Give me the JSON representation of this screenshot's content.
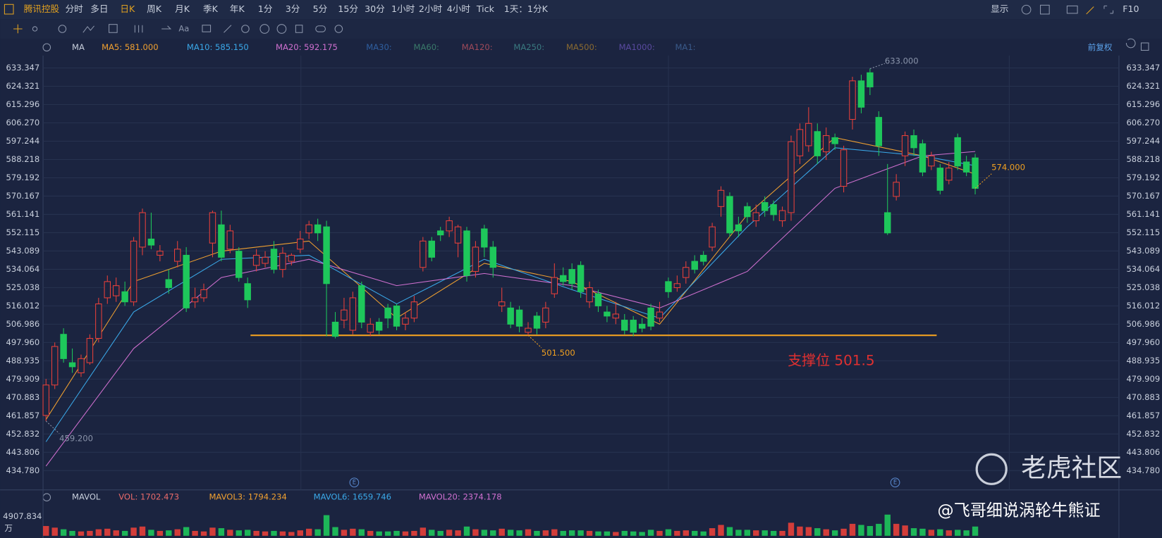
{
  "toolbar": [
    "腾讯控股",
    "分时",
    "多日",
    "日K",
    "周K",
    "月K",
    "季K",
    "年K",
    "1分",
    "3分",
    "5分",
    "15分",
    "30分",
    "1小时",
    "2小时",
    "4小时",
    "Tick",
    "1天：1分K",
    "显示",
    "F10"
  ],
  "draw_tools": [
    "Aa"
  ],
  "indicator_label": "MA",
  "inactive_ma": [
    {
      "name": "MA30:",
      "color": "#2f5fa0"
    },
    {
      "name": "MA60:",
      "color": "#3a7a6a"
    },
    {
      "name": "MA120:",
      "color": "#a04a5a"
    },
    {
      "name": "MA250:",
      "color": "#3a7a80"
    },
    {
      "name": "MA500:",
      "color": "#8a6a30"
    },
    {
      "name": "MA1000:",
      "color": "#5a4aa0"
    },
    {
      "name": "MA1:",
      "color": "#3a5a8a"
    }
  ],
  "adjust_label": "前复权",
  "event_markers": [
    "E",
    "E"
  ],
  "watermark": "老虎社区",
  "author": "@飞哥细说涡轮牛熊证",
  "chart_data": {
    "type": "candlestick",
    "up_color": "#e8403a",
    "down_color": "#1ec75b",
    "open": [
      462,
      477,
      502,
      488,
      483,
      488,
      500,
      520,
      521,
      523,
      518,
      545,
      549,
      541,
      529,
      538,
      541,
      518,
      520,
      547,
      556,
      544,
      543,
      527,
      536,
      537,
      544,
      534,
      538,
      544,
      552,
      556,
      555,
      508,
      509,
      504,
      526,
      503,
      508,
      515,
      516,
      507,
      510,
      535,
      548,
      553,
      553,
      547,
      553,
      533,
      554,
      545,
      516,
      515,
      514,
      503,
      511,
      508,
      522,
      531,
      534,
      536,
      518,
      522,
      513,
      510,
      509,
      509,
      507,
      515,
      510,
      528,
      525,
      530,
      538,
      541,
      545,
      565,
      570,
      556,
      565,
      558,
      567,
      566,
      558,
      562,
      590,
      595,
      602,
      592,
      599,
      575,
      608,
      627,
      631,
      609,
      562,
      570,
      590,
      600,
      596,
      585,
      584,
      578,
      599,
      587,
      589
    ],
    "high": [
      480,
      498,
      505,
      495,
      492,
      502,
      520,
      531,
      530,
      528,
      550,
      564,
      562,
      546,
      534,
      548,
      545,
      525,
      527,
      563,
      563,
      556,
      545,
      530,
      544,
      543,
      548,
      545,
      542,
      553,
      558,
      559,
      558,
      513,
      520,
      523,
      528,
      510,
      510,
      517,
      517,
      513,
      521,
      550,
      550,
      555,
      560,
      556,
      555,
      548,
      556,
      548,
      525,
      518,
      516,
      508,
      513,
      518,
      537,
      535,
      537,
      538,
      528,
      524,
      516,
      518,
      512,
      511,
      510,
      517,
      518,
      530,
      531,
      538,
      541,
      543,
      557,
      575,
      572,
      560,
      567,
      566,
      570,
      568,
      565,
      600,
      606,
      614,
      606,
      604,
      601,
      595,
      629,
      630,
      633,
      612,
      586,
      581,
      602,
      603,
      598,
      592,
      586,
      587,
      601,
      590,
      591
    ],
    "low": [
      459.2,
      475,
      488,
      483,
      481,
      487,
      498,
      517,
      518,
      516,
      516,
      541,
      544,
      538,
      522,
      535,
      513,
      515,
      518,
      540,
      538,
      542,
      528,
      515,
      533,
      535,
      532,
      530,
      536,
      542,
      549,
      548,
      501,
      500,
      505,
      502,
      505,
      501,
      502,
      505,
      504,
      504,
      508,
      533,
      538,
      548,
      550,
      540,
      528,
      530,
      540,
      530,
      513,
      505,
      503,
      501.5,
      502,
      505,
      520,
      526,
      524,
      520,
      515,
      513,
      508,
      507,
      502,
      501,
      503,
      504,
      508,
      520,
      523,
      527,
      532,
      536,
      543,
      560,
      550,
      550,
      557,
      555,
      560,
      558,
      555,
      558,
      586,
      592,
      586,
      588,
      593,
      572,
      603,
      611,
      620,
      590,
      551,
      568,
      585,
      590,
      580,
      583,
      571,
      576,
      583,
      580,
      571
    ],
    "close": [
      477,
      496,
      490,
      486,
      490,
      500,
      517,
      528,
      526,
      518,
      548,
      562,
      546,
      543,
      525,
      544,
      515,
      520,
      524,
      562,
      540,
      553,
      530,
      519,
      541,
      540,
      534,
      542,
      541,
      549,
      556,
      552,
      527,
      501,
      514,
      520,
      508,
      507,
      504,
      510,
      506,
      510,
      518,
      548,
      540,
      551,
      558,
      555,
      531,
      545,
      545,
      535,
      518,
      507,
      506,
      505,
      505,
      515,
      530,
      528,
      527,
      523,
      525,
      516,
      511,
      512,
      504,
      503,
      505,
      506,
      513,
      523,
      527,
      535,
      534,
      538,
      555,
      573,
      552,
      553,
      560,
      562,
      563,
      561,
      563,
      597,
      603,
      606,
      590,
      600,
      596,
      593,
      627,
      614,
      624,
      595,
      552,
      577,
      600,
      594,
      582,
      590,
      573,
      584,
      585,
      582,
      574
    ],
    "ylim": [
      426.0,
      639.5
    ],
    "yticks": [
      633.347,
      624.321,
      615.296,
      {
        "value": 606.27,
        "label": "606.270"
      },
      597.244,
      588.218,
      579.192,
      570.167,
      561.141,
      552.115,
      543.089,
      534.064,
      525.038,
      516.012,
      506.986,
      {
        "value": 497.96,
        "label": "497.960"
      },
      488.935,
      479.909,
      470.883,
      461.857,
      452.832,
      443.806,
      {
        "value": 434.78,
        "label": "434.780"
      }
    ],
    "ma": {
      "x": [
        0,
        10,
        20,
        30,
        40,
        50,
        60,
        70,
        80,
        90,
        100,
        106
      ],
      "series": [
        {
          "name": "MA5: 581.000",
          "color": "#f0a030",
          "values": [
            460,
            528,
            543,
            548,
            510,
            537,
            528,
            507,
            561,
            599,
            590,
            581
          ]
        },
        {
          "name": "MA10: 585.150",
          "color": "#3aa8e8",
          "values": [
            449,
            513,
            539,
            541,
            517,
            539,
            524,
            510,
            555,
            594,
            590,
            585.15
          ]
        },
        {
          "name": "MA20: 592.175",
          "color": "#d070d0",
          "values": [
            437,
            495,
            530,
            539,
            526,
            532,
            526,
            515,
            533,
            574,
            590,
            592.175
          ]
        }
      ]
    },
    "annotations": [
      {
        "value": 633,
        "label": "633.000"
      },
      {
        "value": 574,
        "label": "574.000"
      },
      {
        "value": 501.5,
        "label": "501.500"
      },
      {
        "value": 459.2,
        "label": "459.200"
      }
    ],
    "support_line": {
      "value": 501.5,
      "label": "支撑位 501.5",
      "color": "#f0a020"
    },
    "volume": {
      "indicator_label": "MAVOL",
      "legend": [
        {
          "name": "VOL: 1702.473",
          "color": "#e86a6a"
        },
        {
          "name": "MAVOL3: 1794.234",
          "color": "#f0a030"
        },
        {
          "name": "MAVOL6: 1659.746",
          "color": "#3aa8e8"
        },
        {
          "name": "MAVOL20: 2374.178",
          "color": "#d070d0"
        }
      ],
      "ylim": [
        0,
        4907.834
      ],
      "yticks": [
        4907.834
      ],
      "unit_label": "万",
      "values": [
        1800,
        1500,
        1200,
        900,
        800,
        900,
        1200,
        1300,
        1000,
        900,
        1500,
        1700,
        1100,
        900,
        1000,
        1200,
        1600,
        900,
        800,
        1500,
        1400,
        1100,
        1000,
        1100,
        900,
        800,
        900,
        800,
        700,
        1000,
        1300,
        1200,
        3800,
        1600,
        1100,
        1300,
        1200,
        900,
        800,
        800,
        900,
        800,
        900,
        1500,
        1100,
        900,
        1100,
        1000,
        1700,
        1200,
        1100,
        1000,
        1300,
        1100,
        1000,
        1200,
        900,
        1000,
        1200,
        900,
        1000,
        1000,
        900,
        800,
        800,
        700,
        900,
        800,
        700,
        1100,
        900,
        1200,
        900,
        1000,
        900,
        800,
        1400,
        2000,
        1600,
        1100,
        1100,
        1000,
        1000,
        900,
        900,
        2400,
        1700,
        1600,
        1400,
        1200,
        1000,
        1300,
        2200,
        2000,
        1800,
        2200,
        3900,
        2200,
        1900,
        1400,
        1300,
        1100,
        1200,
        1000,
        1100,
        1000,
        1702.473
      ]
    }
  }
}
